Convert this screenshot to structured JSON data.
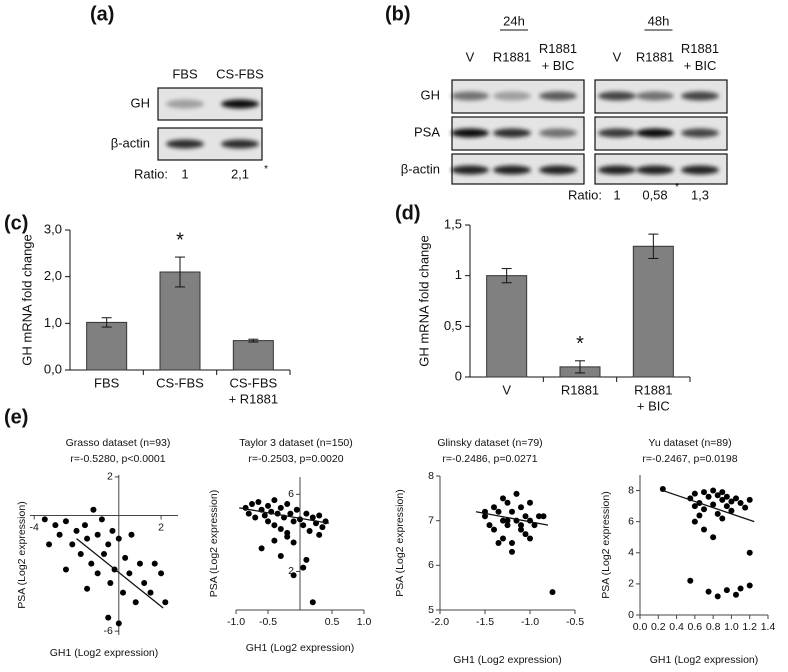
{
  "panel_labels": [
    "(a)",
    "(b)",
    "(c)",
    "(d)",
    "(e)"
  ],
  "blot_a": {
    "lanes": [
      "FBS",
      "CS-FBS"
    ],
    "rows": [
      "GH",
      "β-actin"
    ],
    "ratio_label": "Ratio:",
    "ratios": [
      "1",
      "2,1"
    ],
    "ratio_marks": [
      null,
      "*"
    ]
  },
  "blot_b": {
    "timepoints": [
      "24h",
      "48h"
    ],
    "lanes": [
      [
        "V"
      ],
      [
        "R1881"
      ],
      [
        "R1881",
        "+ BIC"
      ]
    ],
    "rows": [
      "GH",
      "PSA",
      "β-actin"
    ],
    "ratio_label": "Ratio:",
    "ratios": [
      "1",
      "0,58",
      "1,3"
    ],
    "ratio_marks": [
      null,
      "*",
      null
    ]
  },
  "chart_data": [
    {
      "type": "bar",
      "ylabel": "GH mRNA fold change",
      "categories": [
        [
          "FBS"
        ],
        [
          "CS-FBS"
        ],
        [
          "CS-FBS",
          "+ R1881"
        ]
      ],
      "values": [
        1.02,
        2.1,
        0.63
      ],
      "errors": [
        0.1,
        0.32,
        0.03
      ],
      "significance": [
        null,
        "*",
        null
      ],
      "color": "#808080",
      "ylim": [
        0,
        3
      ],
      "yticks": [
        {
          "value": 0,
          "label": "0,0"
        },
        {
          "value": 1,
          "label": "1,0"
        },
        {
          "value": 2,
          "label": "2,0"
        },
        {
          "value": 3,
          "label": "3,0"
        }
      ]
    },
    {
      "type": "bar",
      "ylabel": "GH mRNA fold change",
      "categories": [
        [
          "V"
        ],
        [
          "R1881"
        ],
        [
          "R1881",
          "+ BIC"
        ]
      ],
      "values": [
        1.0,
        0.1,
        1.29
      ],
      "errors": [
        0.07,
        0.06,
        0.12
      ],
      "significance": [
        null,
        "*",
        null
      ],
      "color": "#808080",
      "ylim": [
        0,
        1.5
      ],
      "yticks": [
        0,
        {
          "value": 0.5,
          "label": "0,5"
        },
        1,
        {
          "value": 1.5,
          "label": "1,5"
        }
      ]
    },
    {
      "type": "scatter",
      "title": "Grasso dataset (n=93)",
      "subtitle": "r=-0.5280, p<0.0001",
      "xlabel": "GH1 (Log2 expression)",
      "ylabel": "PSA (Log2 expression)",
      "color": "#000000",
      "xlim": [
        -4.2,
        2.8
      ],
      "ylim": [
        -6.2,
        2.1
      ],
      "xticks": [
        -4,
        2
      ],
      "yticks": [
        -6,
        2
      ],
      "x": [
        -3.5,
        -3,
        -2.8,
        -2.5,
        -2.2,
        -2,
        -1.8,
        -1.6,
        -1.5,
        -1.3,
        -1.2,
        -1,
        -1,
        -0.8,
        -0.7,
        -0.5,
        -0.4,
        -0.3,
        -0.2,
        0,
        0.2,
        0.3,
        0.5,
        0.6,
        0.8,
        1,
        1.2,
        1.5,
        2,
        2.2,
        -2.5,
        -1.5,
        -0.5,
        0,
        -3.3,
        1.7
      ],
      "values": [
        -0.2,
        -0.5,
        -1,
        -0.3,
        -1.5,
        -0.8,
        -2,
        -0.5,
        -1.2,
        -2.5,
        0.3,
        -1,
        -3,
        -0.2,
        -2,
        -1.5,
        -3.5,
        -0.8,
        -2.8,
        -1.2,
        -4,
        -2.2,
        -3,
        -1,
        -4.5,
        -2.5,
        -3.5,
        -4,
        -3,
        -4.5,
        -2.8,
        -3.8,
        -5.3,
        -5.6,
        -1.5,
        -2.5
      ],
      "fit_line": {
        "x": [
          -2,
          2.1
        ],
        "y": [
          -1.2,
          -4.8
        ]
      }
    },
    {
      "type": "scatter",
      "title": "Taylor 3 dataset (n=150)",
      "subtitle": "r=-0.2503, p=0.0020",
      "xlabel": "GH1 (Log2 expression)",
      "ylabel": "PSA (Log2 expression)",
      "color": "#000000",
      "xlim": [
        -1,
        1
      ],
      "ylim": [
        0,
        6.9
      ],
      "xticks": [
        {
          "value": -1,
          "label": "-1.0"
        },
        -0.5,
        0.5,
        {
          "value": 1,
          "label": "1.0"
        }
      ],
      "yticks": [
        2,
        6
      ],
      "x": [
        -0.85,
        -0.8,
        -0.75,
        -0.7,
        -0.65,
        -0.6,
        -0.55,
        -0.5,
        -0.5,
        -0.45,
        -0.4,
        -0.4,
        -0.35,
        -0.3,
        -0.3,
        -0.25,
        -0.2,
        -0.2,
        -0.15,
        -0.1,
        -0.1,
        -0.05,
        0,
        0.05,
        0.1,
        0.15,
        0.2,
        0.25,
        0.3,
        0.35,
        0.4,
        -0.6,
        -0.3,
        -0.1,
        0.1,
        0.2,
        -0.4,
        0.3,
        0.05,
        -0.2
      ],
      "values": [
        5.3,
        5.0,
        5.5,
        4.8,
        5.6,
        5.2,
        4.9,
        5.4,
        4.6,
        5.1,
        5.7,
        4.4,
        5.0,
        5.3,
        4.2,
        4.8,
        5.5,
        3.8,
        5.0,
        4.6,
        3.5,
        5.2,
        4.7,
        4.4,
        5.0,
        4.1,
        4.8,
        4.5,
        4.9,
        4.3,
        4.6,
        3.2,
        2.8,
        1.8,
        2.6,
        0.4,
        3.6,
        3.9,
        2.2,
        4.0
      ],
      "fit_line": {
        "x": [
          -0.95,
          0.45
        ],
        "y": [
          5.3,
          4.5
        ]
      }
    },
    {
      "type": "scatter",
      "title": "Glinsky dataset (n=79)",
      "subtitle": "r=-0.2486, p=0.0271",
      "xlabel": "GH1 (Log2 expression)",
      "ylabel": "PSA (Log2 expression)",
      "color": "#000000",
      "xlim": [
        -2,
        -0.5
      ],
      "ylim": [
        5,
        8
      ],
      "xticks": [
        {
          "value": -2,
          "label": "-2.0"
        },
        -1.5,
        {
          "value": -1,
          "label": "-1.0"
        },
        -0.5
      ],
      "yticks": [
        5,
        6,
        7,
        8
      ],
      "x": [
        -1.5,
        -1.45,
        -1.4,
        -1.4,
        -1.35,
        -1.3,
        -1.3,
        -1.25,
        -1.25,
        -1.2,
        -1.2,
        -1.15,
        -1.15,
        -1.1,
        -1.1,
        -1.05,
        -1.05,
        -1.0,
        -1.0,
        -0.95,
        -0.9,
        -1.35,
        -1.2,
        -1.3,
        -1.1,
        -1.0,
        -1.5,
        -0.85,
        -0.75,
        -1.25
      ],
      "values": [
        7.1,
        6.9,
        7.3,
        6.8,
        7.2,
        7.0,
        6.6,
        7.4,
        6.9,
        7.2,
        6.5,
        7.0,
        7.6,
        6.8,
        7.3,
        7.1,
        6.7,
        7.0,
        7.4,
        6.9,
        7.1,
        6.5,
        6.3,
        7.5,
        6.9,
        6.6,
        7.2,
        7.1,
        5.4,
        7.0
      ],
      "fit_line": {
        "x": [
          -1.6,
          -0.8
        ],
        "y": [
          7.2,
          6.9
        ]
      }
    },
    {
      "type": "scatter",
      "title": "Yu dataset (n=89)",
      "subtitle": "r=-0.2467, p=0.0198",
      "xlabel": "GH1 (Log2 expression)",
      "ylabel": "PSA (Log2 expression)",
      "color": "#000000",
      "xlim": [
        0,
        1.4
      ],
      "ylim": [
        0,
        9
      ],
      "xticks": [
        {
          "value": 0,
          "label": "0.0"
        },
        0.2,
        0.4,
        0.6,
        0.8,
        {
          "value": 1,
          "label": "1.0"
        },
        1.2,
        1.4
      ],
      "yticks": [
        0,
        2,
        4,
        6,
        8
      ],
      "x": [
        0.25,
        0.55,
        0.6,
        0.65,
        0.7,
        0.7,
        0.75,
        0.8,
        0.8,
        0.85,
        0.85,
        0.9,
        0.9,
        0.95,
        0.95,
        1.0,
        1.0,
        1.05,
        1.1,
        1.15,
        1.2,
        0.6,
        0.7,
        0.8,
        0.9,
        0.65,
        1.2,
        0.55,
        0.75,
        0.85,
        0.95,
        1.05,
        1.1,
        1.2,
        0.6
      ],
      "values": [
        8.1,
        7.5,
        7.8,
        7.2,
        7.9,
        6.8,
        7.6,
        8.0,
        7.1,
        7.7,
        6.5,
        7.4,
        7.9,
        7.0,
        7.6,
        7.3,
        6.7,
        7.5,
        7.2,
        6.9,
        7.4,
        6.0,
        5.5,
        5.0,
        6.2,
        6.4,
        4.0,
        2.2,
        1.5,
        1.2,
        1.6,
        1.3,
        1.7,
        1.9,
        7.0
      ],
      "fit_line": {
        "x": [
          0.25,
          1.25
        ],
        "y": [
          8.0,
          6.0
        ]
      }
    }
  ]
}
